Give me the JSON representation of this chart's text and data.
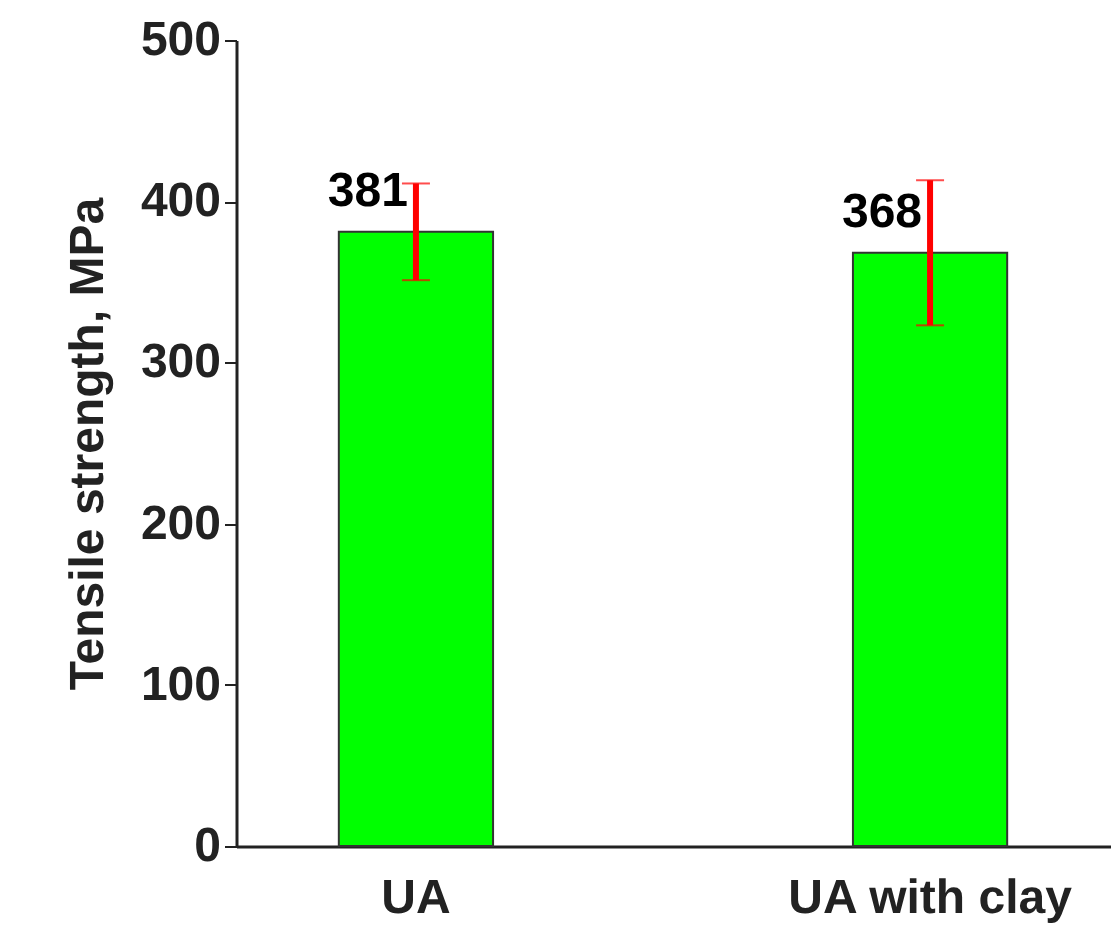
{
  "chart_data": {
    "type": "bar",
    "ylabel": "Tensile strength, MPa",
    "categories": [
      "UA",
      "UA with clay"
    ],
    "series": [
      {
        "color": "#00ff00",
        "values": [
          381,
          368
        ],
        "errors": [
          [
            351,
            411
          ],
          [
            323,
            413
          ]
        ]
      }
    ],
    "ylim": [
      0,
      500
    ],
    "yticks": [
      0,
      100,
      200,
      300,
      400,
      500
    ],
    "data_labels": true
  }
}
